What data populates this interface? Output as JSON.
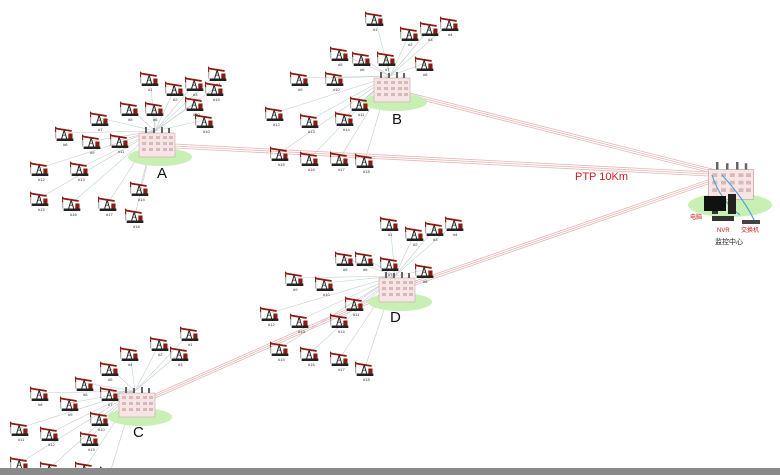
{
  "link_label": "PTP 10Km",
  "colors": {
    "link": "#e8b4b4",
    "branch": "#b8dcc8",
    "label_red": "#d21b1b",
    "grass": "#c9f0b4"
  },
  "monitoring_center": {
    "title": "监控中心",
    "devices": {
      "computer": "电脑",
      "nvr": "NVR",
      "switch": "交换机"
    }
  },
  "clusters": [
    {
      "name": "A",
      "jacks": [
        "#1",
        "#2",
        "#3",
        "#4",
        "#5",
        "#6",
        "#7",
        "#8",
        "#9",
        "#10",
        "#11",
        "#12",
        "#13",
        "#14",
        "#15",
        "#16",
        "#17",
        "#18",
        "#19",
        "#20"
      ]
    },
    {
      "name": "B",
      "jacks": [
        "#1",
        "#2",
        "#3",
        "#4",
        "#5",
        "#6",
        "#7",
        "#8",
        "#9",
        "#10",
        "#11",
        "#12",
        "#13",
        "#14",
        "#15",
        "#16",
        "#17",
        "#18"
      ]
    },
    {
      "name": "C",
      "jacks": [
        "#1",
        "#2",
        "#3",
        "#4",
        "#5",
        "#6",
        "#7",
        "#8",
        "#9",
        "#10",
        "#11",
        "#12",
        "#13",
        "#14",
        "#15",
        "#16",
        "#17"
      ]
    },
    {
      "name": "D",
      "jacks": [
        "#1",
        "#2",
        "#3",
        "#4",
        "#5",
        "#6",
        "#7",
        "#8",
        "#9",
        "#10",
        "#11",
        "#12",
        "#13",
        "#14",
        "#15",
        "#16",
        "#17",
        "#18"
      ]
    }
  ]
}
